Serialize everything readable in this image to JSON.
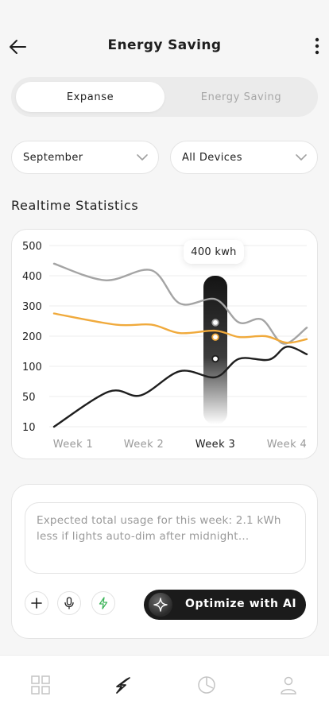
{
  "header": {
    "title": "Energy Saving",
    "back_icon": "arrow-left-icon",
    "more_icon": "more-vertical-icon"
  },
  "segment": {
    "tabs": [
      {
        "label": "Expanse",
        "active": true
      },
      {
        "label": "Energy Saving",
        "active": false
      }
    ]
  },
  "filters": {
    "month": "September",
    "devices": "All Devices"
  },
  "section_title": "Realtime Statistics",
  "chart_data": {
    "type": "line",
    "categories": [
      "Week 1",
      "Week 2",
      "Week 3",
      "Week 4"
    ],
    "y_ticks": [
      10,
      50,
      100,
      200,
      300,
      400,
      500
    ],
    "highlight_category": "Week 3",
    "tooltip": "400 kwh",
    "highlight_value": 400,
    "grid": true,
    "series": [
      {
        "color": "#a4a4a4",
        "points": [
          [
            0,
            440
          ],
          [
            0.45,
            385
          ],
          [
            1.1,
            418
          ],
          [
            1.5,
            308
          ],
          [
            2.0,
            322
          ],
          [
            2.33,
            245
          ],
          [
            2.65,
            255
          ],
          [
            2.95,
            175
          ],
          [
            3.15,
            228
          ]
        ]
      },
      {
        "color": "#f0aa3c",
        "points": [
          [
            0,
            275
          ],
          [
            0.6,
            238
          ],
          [
            1.1,
            238
          ],
          [
            1.5,
            210
          ],
          [
            2.0,
            218
          ],
          [
            2.33,
            197
          ],
          [
            2.7,
            200
          ],
          [
            3.0,
            178
          ],
          [
            3.15,
            190
          ]
        ]
      },
      {
        "color": "#1e1e1e",
        "points": [
          [
            0,
            10
          ],
          [
            0.5,
            58
          ],
          [
            0.95,
            52
          ],
          [
            1.5,
            92
          ],
          [
            2.0,
            82
          ],
          [
            2.33,
            125
          ],
          [
            2.75,
            122
          ],
          [
            3.0,
            165
          ],
          [
            3.15,
            140
          ]
        ]
      }
    ]
  },
  "ai": {
    "message": "Expected total usage for this week: 2.1 kWh less if lights auto-dim after midnight…",
    "add_icon": "plus-icon",
    "mic_icon": "microphone-icon",
    "bolt_icon": "bolt-icon",
    "optimize_label": "Optimize with AI",
    "sparkle_icon": "sparkle-icon"
  },
  "tabbar": {
    "items": [
      "grid-icon",
      "energy-icon",
      "pie-chart-icon",
      "user-icon"
    ],
    "active": "energy-icon"
  }
}
